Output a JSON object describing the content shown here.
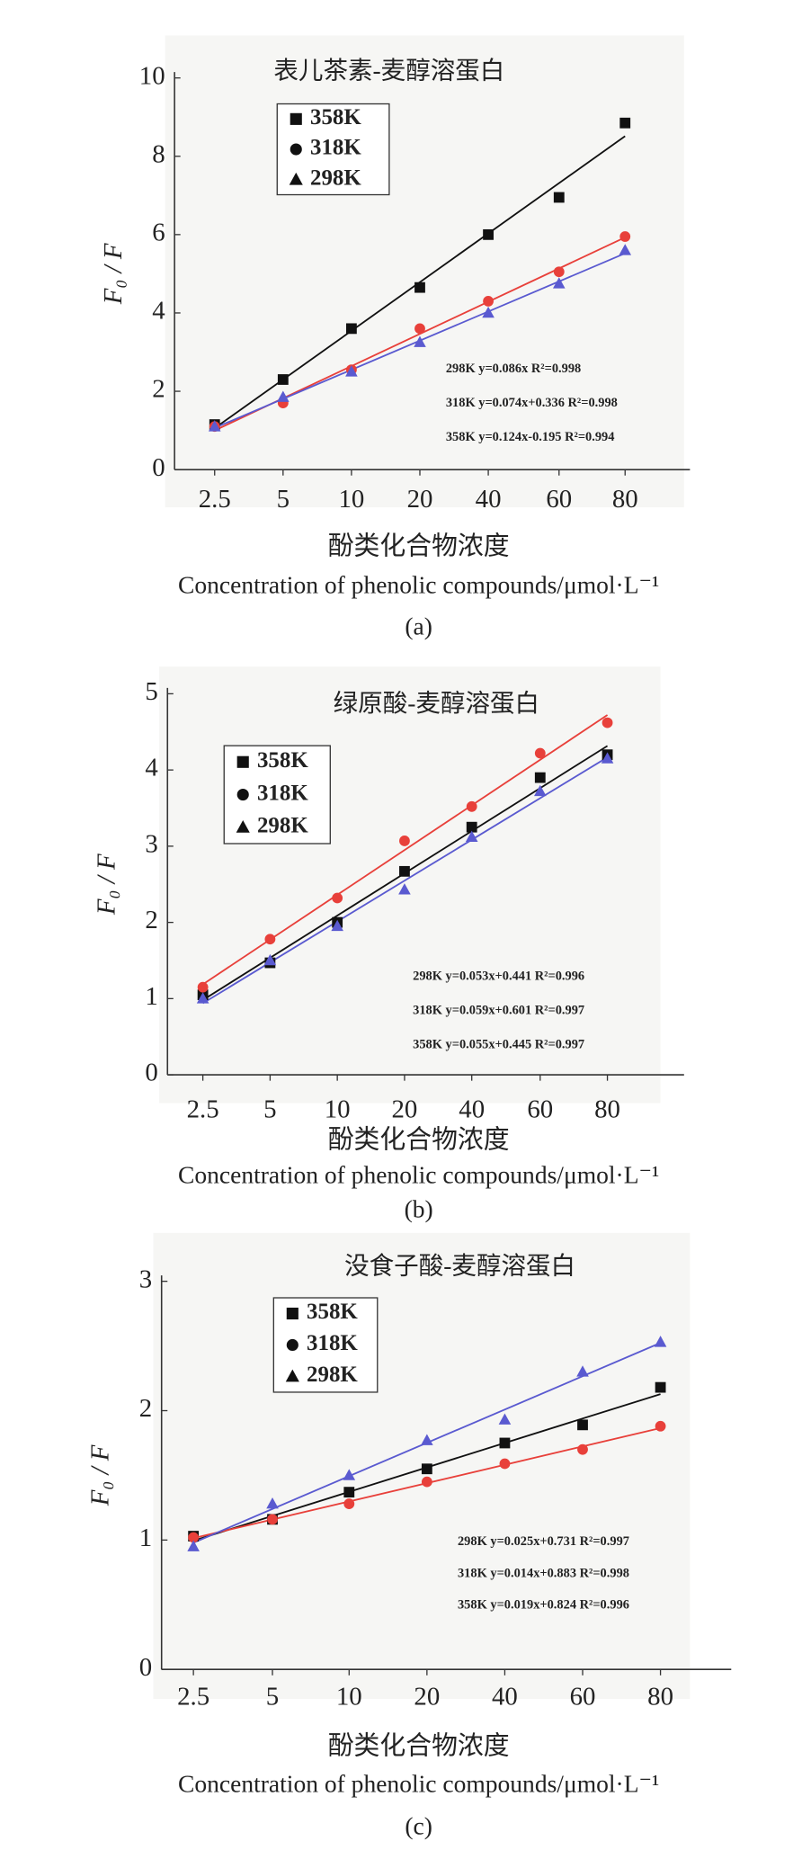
{
  "chart_data": [
    {
      "type": "scatter",
      "title": "表儿茶素-麦醇溶蛋白",
      "ylabel": "F₀ / F",
      "xlabel": "酚类化合物浓度",
      "xlabel_en": "Concentration of phenolic compounds/μmol·L⁻¹",
      "caption": "(a)",
      "categories": [
        "2.5",
        "5",
        "10",
        "20",
        "40",
        "60",
        "80"
      ],
      "ylim": [
        0,
        10
      ],
      "yticks": [
        0,
        2,
        4,
        6,
        8,
        10
      ],
      "series": [
        {
          "name": "358K",
          "color": "#111111",
          "marker": "square",
          "values": [
            1.15,
            2.3,
            3.6,
            4.65,
            6.0,
            6.95,
            8.85
          ]
        },
        {
          "name": "318K",
          "color": "#e8403a",
          "marker": "circle",
          "values": [
            1.1,
            1.7,
            2.55,
            3.6,
            4.3,
            5.05,
            5.95
          ]
        },
        {
          "name": "298K",
          "color": "#5a5ad0",
          "marker": "triangle",
          "values": [
            1.1,
            1.85,
            2.5,
            3.25,
            4.0,
            4.75,
            5.6
          ]
        }
      ],
      "annotations": [
        "298K y=0.086x        R²=0.998",
        "318K y=0.074x+0.336 R²=0.998",
        "358K y=0.124x-0.195 R²=0.994"
      ]
    },
    {
      "type": "scatter",
      "title": "绿原酸-麦醇溶蛋白",
      "ylabel": "F₀ / F",
      "xlabel": "酚类化合物浓度",
      "xlabel_en": "Concentration of phenolic compounds/μmol·L⁻¹",
      "caption": "(b)",
      "categories": [
        "2.5",
        "5",
        "10",
        "20",
        "40",
        "60",
        "80"
      ],
      "ylim": [
        0,
        5
      ],
      "yticks": [
        0,
        1,
        2,
        3,
        4,
        5
      ],
      "series": [
        {
          "name": "358K",
          "color": "#111111",
          "marker": "square",
          "values": [
            1.05,
            1.47,
            2.0,
            2.67,
            3.25,
            3.9,
            4.2
          ]
        },
        {
          "name": "318K",
          "color": "#e8403a",
          "marker": "circle",
          "values": [
            1.15,
            1.78,
            2.32,
            3.07,
            3.52,
            4.22,
            4.62
          ]
        },
        {
          "name": "298K",
          "color": "#5a5ad0",
          "marker": "triangle",
          "values": [
            1.0,
            1.5,
            1.95,
            2.43,
            3.12,
            3.72,
            4.15
          ]
        }
      ],
      "annotations": [
        "298K y=0.053x+0.441 R²=0.996",
        "318K y=0.059x+0.601 R²=0.997",
        "358K y=0.055x+0.445 R²=0.997"
      ]
    },
    {
      "type": "scatter",
      "title": "没食子酸-麦醇溶蛋白",
      "ylabel": "F₀ / F",
      "xlabel": "酚类化合物浓度",
      "xlabel_en": "Concentration of phenolic compounds/μmol·L⁻¹",
      "caption": "(c)",
      "categories": [
        "2.5",
        "5",
        "10",
        "20",
        "40",
        "60",
        "80"
      ],
      "ylim": [
        0,
        3
      ],
      "yticks": [
        0,
        1,
        2,
        3
      ],
      "series": [
        {
          "name": "358K",
          "color": "#111111",
          "marker": "square",
          "values": [
            1.03,
            1.16,
            1.37,
            1.55,
            1.75,
            1.89,
            2.18
          ]
        },
        {
          "name": "318K",
          "color": "#e8403a",
          "marker": "circle",
          "values": [
            1.02,
            1.16,
            1.28,
            1.45,
            1.59,
            1.7,
            1.88
          ]
        },
        {
          "name": "298K",
          "color": "#5a5ad0",
          "marker": "triangle",
          "values": [
            0.95,
            1.28,
            1.5,
            1.77,
            1.93,
            2.3,
            2.53
          ]
        }
      ],
      "annotations": [
        "298K y=0.025x+0.731 R²=0.997",
        "318K y=0.014x+0.883 R²=0.998",
        "358K y=0.019x+0.824 R²=0.996"
      ]
    }
  ]
}
